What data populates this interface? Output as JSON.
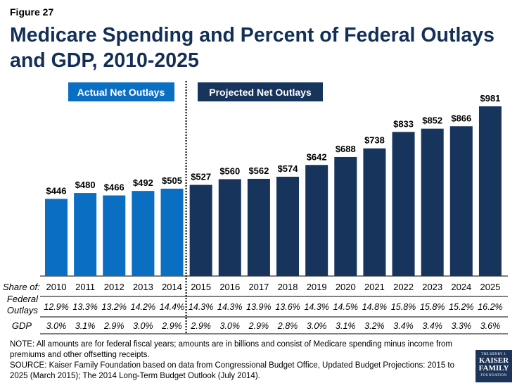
{
  "figure_label": "Figure 27",
  "title": "Medicare Spending and Percent of Federal Outlays and GDP, 2010-2025",
  "note": "NOTE: All amounts are for federal fiscal years; amounts are in billions and consist of Medicare spending minus income from premiums and other offsetting receipts.",
  "source": "SOURCE: Kaiser Family Foundation based on data from Congressional Budget Office, Updated Budget Projections: 2015 to 2025 (March 2015); The 2014 Long-Term Budget Outlook (July 2014).",
  "logo": {
    "line1": "THE HENRY J.",
    "line2": "KAISER",
    "line3": "FAMILY",
    "line4": "FOUNDATION"
  },
  "colors": {
    "actual": "#0a6fc2",
    "projected": "#16345c",
    "title": "#142f57"
  },
  "chart_data": {
    "type": "bar",
    "title": "Medicare Spending and Percent of Federal Outlays and GDP, 2010-2025",
    "categories": [
      "2010",
      "2011",
      "2012",
      "2013",
      "2014",
      "2015",
      "2016",
      "2017",
      "2018",
      "2019",
      "2020",
      "2021",
      "2022",
      "2023",
      "2024",
      "2025"
    ],
    "values": [
      446,
      480,
      466,
      492,
      505,
      527,
      560,
      562,
      574,
      642,
      688,
      738,
      833,
      852,
      866,
      981
    ],
    "value_labels": [
      "$446",
      "$480",
      "$466",
      "$492",
      "$505",
      "$527",
      "$560",
      "$562",
      "$574",
      "$642",
      "$688",
      "$738",
      "$833",
      "$852",
      "$866",
      "$981"
    ],
    "series_split": {
      "actual_count": 5
    },
    "legend": [
      "Actual Net Outlays",
      "Projected Net Outlays"
    ],
    "ylim": [
      0,
      1000
    ],
    "xlabel": "",
    "ylabel": "",
    "grid": false,
    "share_label": "Share of:",
    "rows": [
      {
        "label_line1": "Federal",
        "label_line2": "Outlays",
        "values": [
          "12.9%",
          "13.3%",
          "13.2%",
          "14.2%",
          "14.4%",
          "14.3%",
          "14.3%",
          "13.9%",
          "13.6%",
          "14.3%",
          "14.5%",
          "14.8%",
          "15.8%",
          "15.8%",
          "15.2%",
          "16.2%"
        ]
      },
      {
        "label_line1": "GDP",
        "label_line2": "",
        "values": [
          "3.0%",
          "3.1%",
          "2.9%",
          "3.0%",
          "2.9%",
          "2.9%",
          "3.0%",
          "2.9%",
          "2.8%",
          "3.0%",
          "3.1%",
          "3.2%",
          "3.4%",
          "3.4%",
          "3.3%",
          "3.6%"
        ]
      }
    ]
  }
}
